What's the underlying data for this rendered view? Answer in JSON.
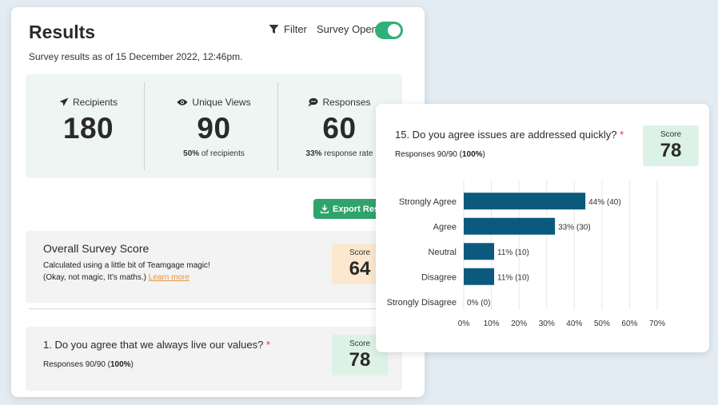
{
  "results": {
    "title": "Results",
    "filter_label": "Filter",
    "survey_open_label": "Survey Open",
    "survey_open": true,
    "subtitle": "Survey results as of 15 December 2022, 12:46pm.",
    "stats": [
      {
        "label": "Recipients",
        "icon": "paper-plane-icon",
        "value": "180",
        "sub_bold": "",
        "sub_rest": ""
      },
      {
        "label": "Unique Views",
        "icon": "eye-icon",
        "value": "90",
        "sub_bold": "50%",
        "sub_rest": " of recipients"
      },
      {
        "label": "Responses",
        "icon": "speech-bubble-icon",
        "value": "60",
        "sub_bold": "33%",
        "sub_rest": " response rate"
      }
    ],
    "export_label": "Export Responses",
    "overall": {
      "title": "Overall Survey Score",
      "desc_line1": "Calculated using a little bit of Teamgage magic!",
      "desc_line2": "(Okay, not magic, It's maths.)",
      "learn_more": "Learn more",
      "score_label": "Score",
      "score": "64"
    },
    "q1": {
      "title": "1. Do you agree that we always live our values?",
      "star": "*",
      "responses_prefix": "Responses 90/90 (",
      "responses_bold": "100%",
      "responses_suffix": ")",
      "score_label": "Score",
      "score": "78"
    }
  },
  "q15": {
    "title": "15. Do you agree issues are addressed quickly?",
    "star": "*",
    "responses_prefix": "Responses 90/90 (",
    "responses_bold": "100%",
    "responses_suffix": ")",
    "score_label": "Score",
    "score": "78"
  },
  "colors": {
    "bar": "#0b5a7e",
    "toggle": "#2fb07a",
    "export": "#2fa36b"
  },
  "chart_data": {
    "type": "bar",
    "orientation": "horizontal",
    "categories": [
      "Strongly Agree",
      "Agree",
      "Neutral",
      "Disagree",
      "Strongly Disagree"
    ],
    "values": [
      44,
      33,
      11,
      11,
      0
    ],
    "counts": [
      40,
      30,
      10,
      10,
      0
    ],
    "data_labels": [
      "44% (40)",
      "33% (30)",
      "11% (10)",
      "11% (10)",
      "0% (0)"
    ],
    "xlim": [
      0,
      70
    ],
    "xticks": [
      "0%",
      "10%",
      "20%",
      "30%",
      "40%",
      "50%",
      "60%",
      "70%"
    ],
    "grid": true
  }
}
